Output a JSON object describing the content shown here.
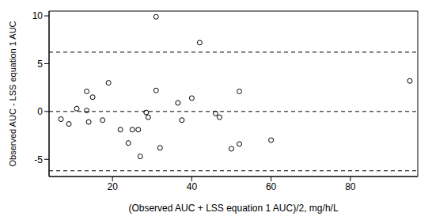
{
  "chart_data": {
    "type": "scatter",
    "x_label": "(Observed AUC + LSS equation 1 AUC)/2, mg/h/L",
    "y_label": "Observed AUC - LSS equation 1 AUC",
    "x": [
      7,
      9,
      11,
      13.5,
      13.5,
      14,
      15,
      17.5,
      19,
      22,
      24,
      25,
      26.5,
      27,
      28.5,
      29,
      31,
      31,
      32,
      36.5,
      37.5,
      40,
      42,
      46,
      47,
      50,
      52,
      52,
      60,
      95
    ],
    "values": [
      -0.8,
      -1.3,
      0.3,
      2.1,
      0.1,
      -1.1,
      1.5,
      -0.9,
      3.0,
      -1.9,
      -3.3,
      -1.9,
      -1.9,
      -4.7,
      -0.1,
      -0.6,
      9.9,
      2.2,
      -3.8,
      0.9,
      -0.9,
      1.4,
      7.2,
      -0.2,
      -0.6,
      -3.9,
      2.1,
      -3.4,
      -3.0,
      3.2
    ],
    "hlines": [
      6.2,
      0,
      -6.2
    ],
    "color": "#000000",
    "marker": "open_circle",
    "line_style": "dashed",
    "xlim": [
      4,
      97
    ],
    "ylim": [
      -6.8,
      10.5
    ],
    "xticks": [
      20,
      40,
      60,
      80
    ],
    "yticks": [
      -5,
      0,
      5,
      10
    ],
    "grid": false
  }
}
